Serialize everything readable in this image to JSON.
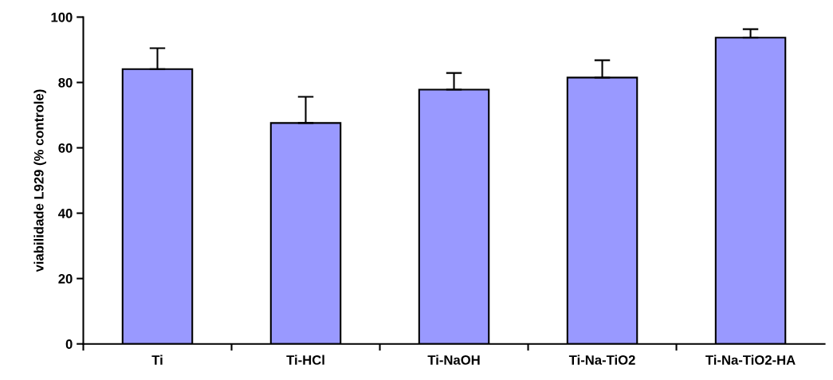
{
  "chart_data": {
    "type": "bar",
    "ylabel": "viabilidade L929 (% controle)",
    "categories": [
      "Ti",
      "Ti-HCl",
      "Ti-NaOH",
      "Ti-Na-TiO2",
      "Ti-Na-TiO2-HA"
    ],
    "values": [
      84.1,
      67.6,
      77.8,
      81.5,
      93.7
    ],
    "errors": [
      [
        84.1,
        90.5
      ],
      [
        67.6,
        75.6
      ],
      [
        77.8,
        82.9
      ],
      [
        81.5,
        86.8
      ],
      [
        93.7,
        96.3
      ]
    ],
    "color": "#9999ff",
    "ylim": [
      0,
      100
    ],
    "yticks": [
      0,
      20,
      40,
      60,
      80,
      100
    ],
    "grid": false,
    "legend": false
  }
}
